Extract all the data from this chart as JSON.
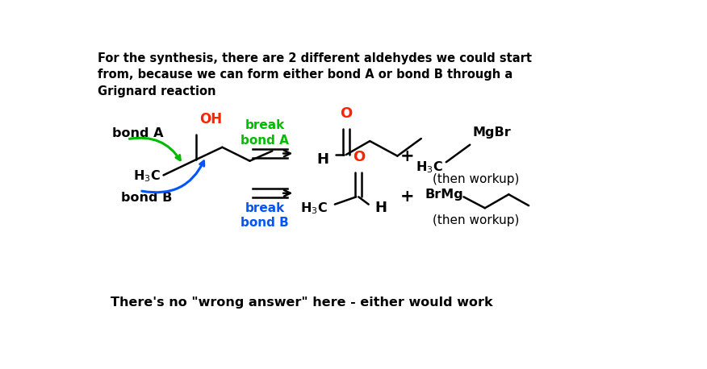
{
  "bg_color": "#ffffff",
  "title_text": "For the synthesis, there are 2 different aldehydes we could start\nfrom, because we can form either bond A or bond B through a\nGrignard reaction",
  "footer_text": "There's no \"wrong answer\" here - either would work",
  "bond_a_label": "bond A",
  "bond_b_label": "bond B",
  "break_bond_a": "break\nbond A",
  "break_bond_b": "break\nbond B",
  "oh_label": "OH",
  "plus_sign": "+",
  "then_workup": "(then workup)",
  "mgbr_label": "MgBr",
  "brmg_label": "BrMg",
  "black": "#000000",
  "green": "#00bb00",
  "blue": "#0055ff",
  "red": "#ff2200",
  "oh_color": "#ff2200",
  "o_color": "#ff2200"
}
